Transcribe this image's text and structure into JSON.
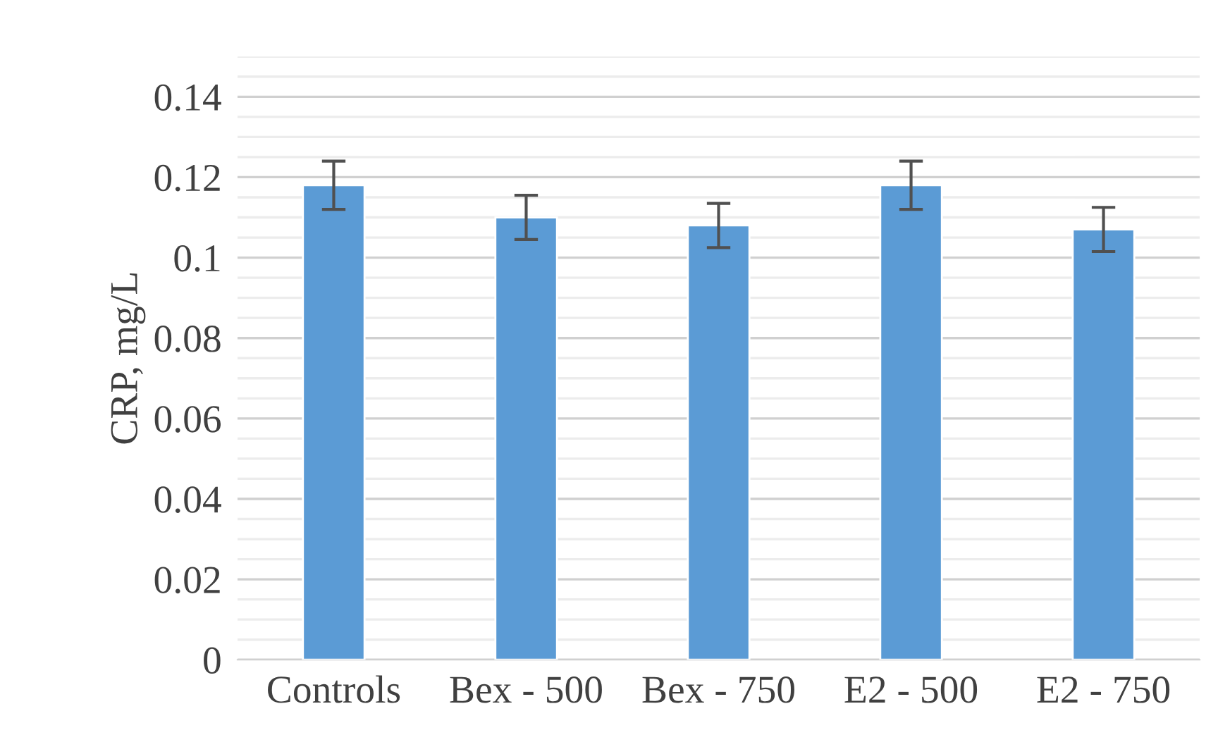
{
  "chart_data": {
    "type": "bar",
    "ylabel": "CRP, mg/L",
    "categories": [
      "Controls",
      "Bex - 500",
      "Bex - 750",
      "E2 - 500",
      "E2 - 750"
    ],
    "series": [
      {
        "color": "#5b9bd5",
        "values": [
          0.118,
          0.11,
          0.108,
          0.118,
          0.107
        ],
        "errors": [
          0.006,
          0.0055,
          0.0055,
          0.006,
          0.0055
        ]
      }
    ],
    "ylim": [
      0,
      0.15
    ],
    "yticks": [
      0,
      {
        "value": 0.005,
        "label": null
      },
      {
        "value": 0.01,
        "label": null
      },
      {
        "value": 0.015,
        "label": null
      },
      0.02,
      {
        "value": 0.025,
        "label": null
      },
      {
        "value": 0.03,
        "label": null
      },
      {
        "value": 0.035,
        "label": null
      },
      0.04,
      {
        "value": 0.045,
        "label": null
      },
      {
        "value": 0.05,
        "label": null
      },
      {
        "value": 0.055,
        "label": null
      },
      0.06,
      {
        "value": 0.065,
        "label": null
      },
      {
        "value": 0.07,
        "label": null
      },
      {
        "value": 0.075,
        "label": null
      },
      0.08,
      {
        "value": 0.085,
        "label": null
      },
      {
        "value": 0.09,
        "label": null
      },
      {
        "value": 0.095,
        "label": null
      },
      0.1,
      {
        "value": 0.105,
        "label": null
      },
      {
        "value": 0.11,
        "label": null
      },
      {
        "value": 0.115,
        "label": null
      },
      0.12,
      {
        "value": 0.125,
        "label": null
      },
      {
        "value": 0.13,
        "label": null
      },
      {
        "value": 0.135,
        "label": null
      },
      0.14,
      {
        "value": 0.145,
        "label": null
      },
      {
        "value": 0.15,
        "label": null
      }
    ],
    "grid": "y",
    "legend": false
  }
}
